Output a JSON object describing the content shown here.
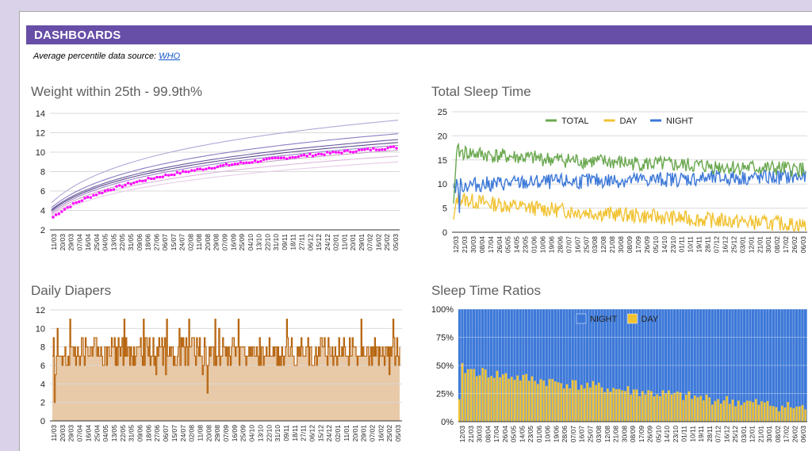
{
  "header": {
    "title": "DASHBOARDS"
  },
  "source": {
    "prefix": "Average percentile data source: ",
    "link_text": "WHO"
  },
  "colors": {
    "header_bg": "#674ea7",
    "total": "#6aa84f",
    "day": "#f1c232",
    "night": "#3c78d8",
    "weight_points": "#ff00ff",
    "diapers": "#b45f06"
  },
  "charts": {
    "weight": {
      "title": "Weight within 25th - 99.9th%",
      "chart_data": {
        "type": "line",
        "ylim": [
          2,
          14
        ],
        "yticks": [
          "2",
          "4",
          "6",
          "8",
          "10",
          "12",
          "14"
        ],
        "x_tick_labels": [
          "11/03",
          "20/03",
          "29/03",
          "07/04",
          "16/04",
          "25/04",
          "04/05",
          "13/05",
          "22/05",
          "31/05",
          "09/06",
          "18/06",
          "27/06",
          "06/07",
          "15/07",
          "24/07",
          "02/08",
          "11/08",
          "20/08",
          "29/08",
          "07/09",
          "16/09",
          "25/09",
          "04/10",
          "13/10",
          "22/10",
          "31/10",
          "09/11",
          "18/11",
          "27/11",
          "06/12",
          "15/12",
          "24/12",
          "02/01",
          "11/01",
          "20/01",
          "29/01",
          "07/02",
          "16/02",
          "25/02",
          "05/03"
        ],
        "percentile_curves": [
          {
            "start": 4.8,
            "end": 13.3
          },
          {
            "start": 4.3,
            "end": 11.9
          },
          {
            "start": 4.1,
            "end": 11.3
          },
          {
            "start": 4.0,
            "end": 11.0
          },
          {
            "start": 3.85,
            "end": 10.7
          },
          {
            "start": 3.7,
            "end": 10.2
          },
          {
            "start": 3.55,
            "end": 9.6
          },
          {
            "start": 3.4,
            "end": 9.0
          }
        ],
        "measured": {
          "start": 3.3,
          "end": 10.5,
          "points": 120
        }
      }
    },
    "sleep_total": {
      "title": "Total Sleep Time",
      "chart_data": {
        "type": "line",
        "ylim": [
          0,
          25
        ],
        "yticks": [
          "0",
          "5",
          "10",
          "15",
          "20",
          "25"
        ],
        "legend_position": "top",
        "series": [
          {
            "name": "TOTAL",
            "key": "total"
          },
          {
            "name": "DAY",
            "key": "day"
          },
          {
            "name": "NIGHT",
            "key": "night"
          }
        ],
        "series_profiles": {
          "total": {
            "start": 17,
            "end": 13
          },
          "day": {
            "start": 7.5,
            "end": 1.5
          },
          "night": {
            "start": 9.5,
            "end": 11.5
          }
        },
        "points": 360,
        "x_tick_labels": [
          "12/03",
          "21/03",
          "30/03",
          "08/04",
          "17/04",
          "26/04",
          "05/05",
          "14/05",
          "23/05",
          "01/06",
          "10/06",
          "19/06",
          "28/06",
          "07/07",
          "16/07",
          "25/07",
          "03/08",
          "12/08",
          "21/08",
          "30/08",
          "08/09",
          "17/09",
          "26/09",
          "05/10",
          "14/10",
          "23/10",
          "01/11",
          "10/11",
          "19/11",
          "28/11",
          "07/12",
          "16/12",
          "25/12",
          "03/01",
          "12/01",
          "21/01",
          "30/01",
          "08/02",
          "17/02",
          "26/02",
          "06/03"
        ]
      }
    },
    "diapers": {
      "title": "Daily Diapers",
      "chart_data": {
        "type": "area",
        "ylim": [
          0,
          12
        ],
        "yticks": [
          "0",
          "2",
          "4",
          "6",
          "8",
          "10",
          "12"
        ],
        "typical_range": [
          6,
          9
        ],
        "max_value": 11,
        "min_value": 2,
        "points": 360,
        "x_tick_labels": [
          "11/03",
          "20/03",
          "29/03",
          "07/04",
          "16/04",
          "25/04",
          "04/05",
          "13/05",
          "22/05",
          "31/05",
          "09/06",
          "18/06",
          "27/06",
          "06/07",
          "15/07",
          "24/07",
          "02/08",
          "11/08",
          "20/08",
          "29/08",
          "07/09",
          "16/09",
          "25/09",
          "04/10",
          "13/10",
          "22/10",
          "31/10",
          "09/11",
          "18/11",
          "27/11",
          "06/12",
          "15/12",
          "24/12",
          "02/01",
          "11/01",
          "20/01",
          "29/01",
          "07/02",
          "16/02",
          "25/02",
          "05/03"
        ]
      }
    },
    "ratios": {
      "title": "Sleep Time Ratios",
      "chart_data": {
        "type": "bar",
        "stacked": "percent",
        "ylim": [
          0,
          100
        ],
        "yticks": [
          "0%",
          "25%",
          "50%",
          "75%",
          "100%"
        ],
        "legend_position": "top",
        "series": [
          {
            "name": "NIGHT",
            "key": "night"
          },
          {
            "name": "DAY",
            "key": "day"
          }
        ],
        "day_share_start": 48,
        "day_share_end": 12,
        "bars": 120,
        "x_tick_labels": [
          "12/03",
          "21/03",
          "30/03",
          "08/04",
          "17/04",
          "26/04",
          "05/05",
          "14/05",
          "23/05",
          "01/06",
          "10/06",
          "19/06",
          "28/06",
          "07/07",
          "16/07",
          "25/07",
          "03/08",
          "12/08",
          "21/08",
          "30/08",
          "08/09",
          "17/09",
          "26/09",
          "05/10",
          "14/10",
          "23/10",
          "01/11",
          "10/11",
          "19/11",
          "28/11",
          "07/12",
          "16/12",
          "25/12",
          "03/01",
          "12/01",
          "21/01",
          "30/01",
          "08/02",
          "17/02",
          "26/02",
          "06/03"
        ]
      }
    }
  }
}
